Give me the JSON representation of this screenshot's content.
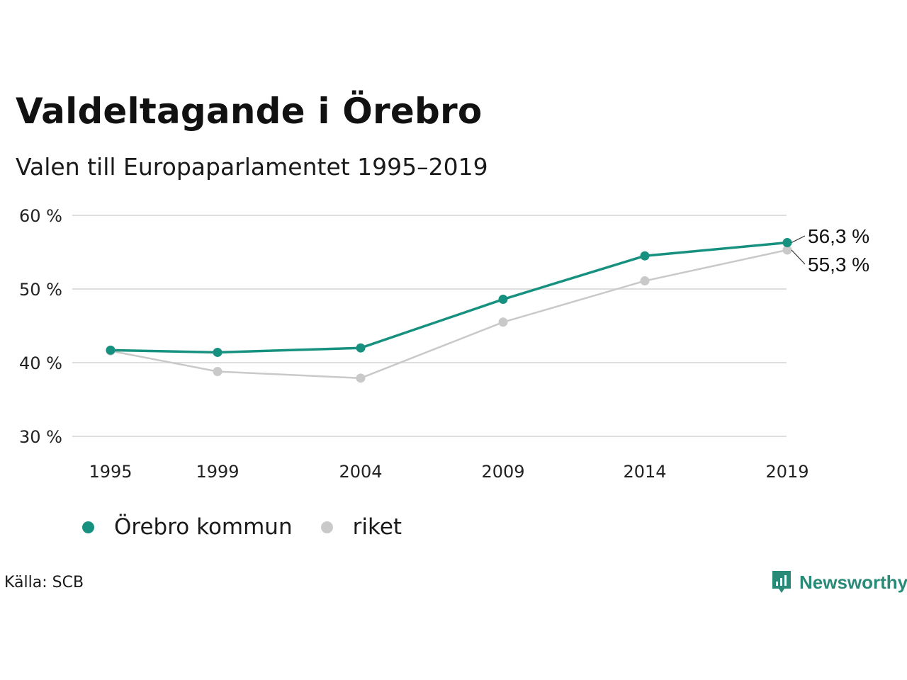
{
  "header": {
    "title": "Valdeltagande i Örebro",
    "subtitle": "Valen till Europaparlamentet 1995–2019"
  },
  "footer": {
    "source": "Källa: SCB",
    "logo_text": "Newsworthy"
  },
  "colors": {
    "orebro": "#17917f",
    "riket": "#c9c9c9",
    "grid": "#dedede",
    "logo": "#2a8a78"
  },
  "chart_data": {
    "type": "line",
    "x": [
      "1995",
      "1999",
      "2004",
      "2009",
      "2014",
      "2019"
    ],
    "series": [
      {
        "name": "Örebro kommun",
        "values": [
          41.7,
          41.4,
          42.0,
          48.6,
          54.5,
          56.3
        ],
        "end_label": "56,3 %"
      },
      {
        "name": "riket",
        "values": [
          41.6,
          38.8,
          37.9,
          45.5,
          51.1,
          55.3
        ],
        "end_label": "55,3 %"
      }
    ],
    "ylim": [
      30,
      60
    ],
    "yticks": [
      {
        "value": 30,
        "label": "30 %"
      },
      {
        "value": 40,
        "label": "40 %"
      },
      {
        "value": 50,
        "label": "50 %"
      },
      {
        "value": 60,
        "label": "60 %"
      }
    ],
    "grid": true,
    "legend_position": "bottom-left"
  }
}
